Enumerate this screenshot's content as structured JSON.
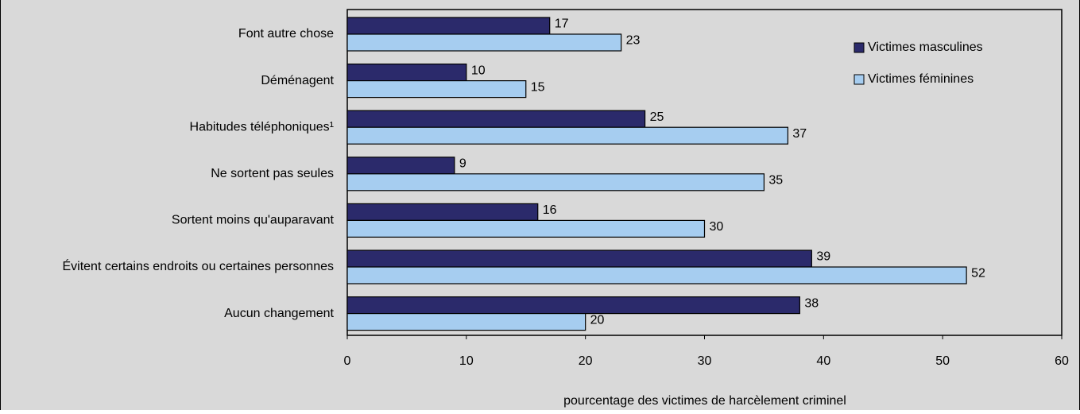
{
  "chart_data": {
    "type": "hbar",
    "categories": [
      "Font autre chose",
      "Déménagent",
      "Habitudes téléphoniques¹",
      "Ne sortent pas seules",
      "Sortent moins qu'auparavant",
      "Évitent certains endroits ou certaines personnes",
      "Aucun changement"
    ],
    "series": [
      {
        "name": "Victimes masculines",
        "color": "#2b2a6b",
        "values": [
          17,
          10,
          25,
          9,
          16,
          39,
          38
        ]
      },
      {
        "name": "Victimes féminines",
        "color": "#a6cdf0",
        "values": [
          23,
          15,
          37,
          35,
          30,
          52,
          20
        ]
      }
    ],
    "xlabel": "pourcentage des victimes de harcèlement criminel",
    "xlim": [
      0,
      60
    ],
    "xticks": [
      0,
      10,
      20,
      30,
      40,
      50,
      60
    ],
    "legend": "upper right",
    "background": "#d9d9d9"
  }
}
